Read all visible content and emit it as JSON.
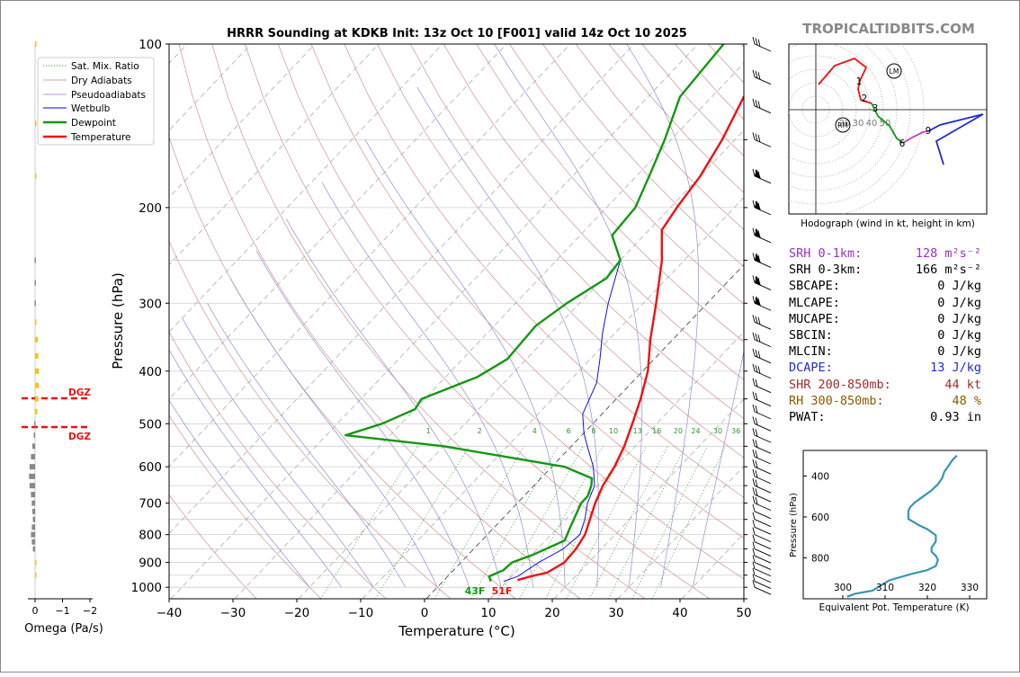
{
  "brand": "TROPICALTIDBITS.COM",
  "chart_data": {
    "type": "skew-t",
    "title": "HRRR Sounding at KDKB Init: 13z Oct 10 [F001] valid 14z Oct 10 2025",
    "xlabel": "Temperature (°C)",
    "ylabel": "Pressure (hPa)",
    "xlim": [
      -40,
      50
    ],
    "ylim": [
      1050,
      100
    ],
    "xticks": [
      "−40",
      "−30",
      "−20",
      "−10",
      "0",
      "10",
      "20",
      "30",
      "40",
      "50"
    ],
    "yticks": [
      "100",
      "200",
      "300",
      "400",
      "500",
      "600",
      "700",
      "800",
      "900",
      "1000"
    ],
    "legend": [
      "Sat. Mix. Ratio",
      "Dry Adiabats",
      "Pseudoadiabats",
      "Wetbulb",
      "Dewpoint",
      "Temperature"
    ],
    "temperature": [
      [
        970,
        11.5
      ],
      [
        955,
        13
      ],
      [
        940,
        15
      ],
      [
        900,
        16.2
      ],
      [
        850,
        16
      ],
      [
        800,
        15.3
      ],
      [
        750,
        13.8
      ],
      [
        700,
        12.2
      ],
      [
        650,
        10.8
      ],
      [
        600,
        9.8
      ],
      [
        550,
        8.3
      ],
      [
        500,
        6.2
      ],
      [
        450,
        3.8
      ],
      [
        400,
        0.8
      ],
      [
        350,
        -3.5
      ],
      [
        300,
        -8
      ],
      [
        250,
        -13.5
      ],
      [
        220,
        -18
      ],
      [
        200,
        -19
      ],
      [
        175,
        -20
      ],
      [
        150,
        -22
      ],
      [
        125,
        -25
      ],
      [
        100,
        -28
      ]
    ],
    "dewpoint": [
      [
        975,
        7.5
      ],
      [
        955,
        6.5
      ],
      [
        930,
        7.8
      ],
      [
        900,
        8.0
      ],
      [
        870,
        10.2
      ],
      [
        820,
        13
      ],
      [
        780,
        12.0
      ],
      [
        700,
        10
      ],
      [
        680,
        10
      ],
      [
        650,
        9
      ],
      [
        630,
        8
      ],
      [
        600,
        2
      ],
      [
        550,
        -20
      ],
      [
        525,
        -37
      ],
      [
        500,
        -33
      ],
      [
        470,
        -30
      ],
      [
        450,
        -30.5
      ],
      [
        410,
        -25
      ],
      [
        380,
        -23
      ],
      [
        330,
        -23.5
      ],
      [
        300,
        -22
      ],
      [
        270,
        -19.5
      ],
      [
        250,
        -20
      ],
      [
        225,
        -25
      ],
      [
        200,
        -25.5
      ],
      [
        175,
        -28
      ],
      [
        150,
        -31
      ],
      [
        125,
        -35
      ],
      [
        100,
        -36
      ]
    ],
    "wetbulb": [
      [
        975,
        9.5
      ],
      [
        955,
        11
      ],
      [
        930,
        11.5
      ],
      [
        900,
        12.2
      ],
      [
        850,
        14
      ],
      [
        800,
        14.5
      ],
      [
        750,
        13
      ],
      [
        700,
        11
      ],
      [
        650,
        9.5
      ],
      [
        600,
        6.5
      ],
      [
        550,
        2.5
      ],
      [
        520,
        0
      ],
      [
        480,
        -3
      ],
      [
        420,
        -5.5
      ],
      [
        380,
        -8.5
      ],
      [
        340,
        -12
      ],
      [
        300,
        -15.5
      ],
      [
        250,
        -20
      ]
    ],
    "surface_labels": {
      "dewpoint": "43F",
      "temperature": "51F"
    },
    "dgz": [
      "DGZ",
      "DGZ"
    ],
    "mix_ratio_labels": [
      "1",
      "2",
      "4",
      "6",
      "8",
      "10",
      "13",
      "16",
      "20",
      "24",
      "30",
      "36"
    ]
  },
  "omega": {
    "xlabel": "Omega (Pa/s)",
    "xticks": [
      "0",
      "−1",
      "−2"
    ]
  },
  "hodograph": {
    "caption": "Hodograph (wind in kt, height in km)",
    "ring_labels": [
      "20",
      "30",
      "40",
      "50"
    ],
    "height_labels": [
      "1",
      "2",
      "3",
      "6",
      "9"
    ],
    "storm_motion": [
      "LM",
      "RM"
    ]
  },
  "thetae": {
    "xlabel": "Equivalent Pot. Temperature (K)",
    "ylabel": "Pressure (hPa)",
    "xticks": [
      "300",
      "310",
      "320",
      "330"
    ],
    "yticks": [
      "400",
      "600",
      "800"
    ],
    "values": [
      [
        990,
        301
      ],
      [
        975,
        303
      ],
      [
        960,
        307
      ],
      [
        935,
        309
      ],
      [
        910,
        311
      ],
      [
        880,
        316
      ],
      [
        860,
        320
      ],
      [
        840,
        322
      ],
      [
        810,
        322.5
      ],
      [
        790,
        322
      ],
      [
        770,
        321
      ],
      [
        750,
        321
      ],
      [
        720,
        322
      ],
      [
        690,
        322
      ],
      [
        660,
        320
      ],
      [
        640,
        318
      ],
      [
        610,
        315.5
      ],
      [
        570,
        315.5
      ],
      [
        550,
        316
      ],
      [
        530,
        317
      ],
      [
        500,
        319
      ],
      [
        470,
        321
      ],
      [
        440,
        322.5
      ],
      [
        410,
        323.5
      ],
      [
        380,
        324
      ],
      [
        350,
        325
      ],
      [
        320,
        326
      ],
      [
        300,
        327
      ]
    ]
  },
  "stats": [
    {
      "label": "SRH 0-1km:",
      "value": "128",
      "unit": "m²s⁻²",
      "color": "#9b30c0"
    },
    {
      "label": "SRH 0-3km:",
      "value": "166",
      "unit": "m²s⁻²",
      "color": "#000000"
    },
    {
      "label": "SBCAPE:",
      "value": "0 J/kg",
      "color": "#000000"
    },
    {
      "label": "MLCAPE:",
      "value": "0 J/kg",
      "color": "#000000"
    },
    {
      "label": "MUCAPE:",
      "value": "0 J/kg",
      "color": "#000000"
    },
    {
      "label": "SBCIN:",
      "value": "0 J/kg",
      "color": "#000000"
    },
    {
      "label": "MLCIN:",
      "value": "0 J/kg",
      "color": "#000000"
    },
    {
      "label": "DCAPE:",
      "value": "13 J/kg",
      "color": "#1f2ad8"
    },
    {
      "label": "SHR 200-850mb:",
      "value": "44 kt",
      "color": "#a52a2a"
    },
    {
      "label": "RH 300-850mb:",
      "value": "48 %",
      "color": "#8b5a00"
    },
    {
      "label": "PWAT:",
      "value": "0.93 in",
      "color": "#000000"
    }
  ]
}
